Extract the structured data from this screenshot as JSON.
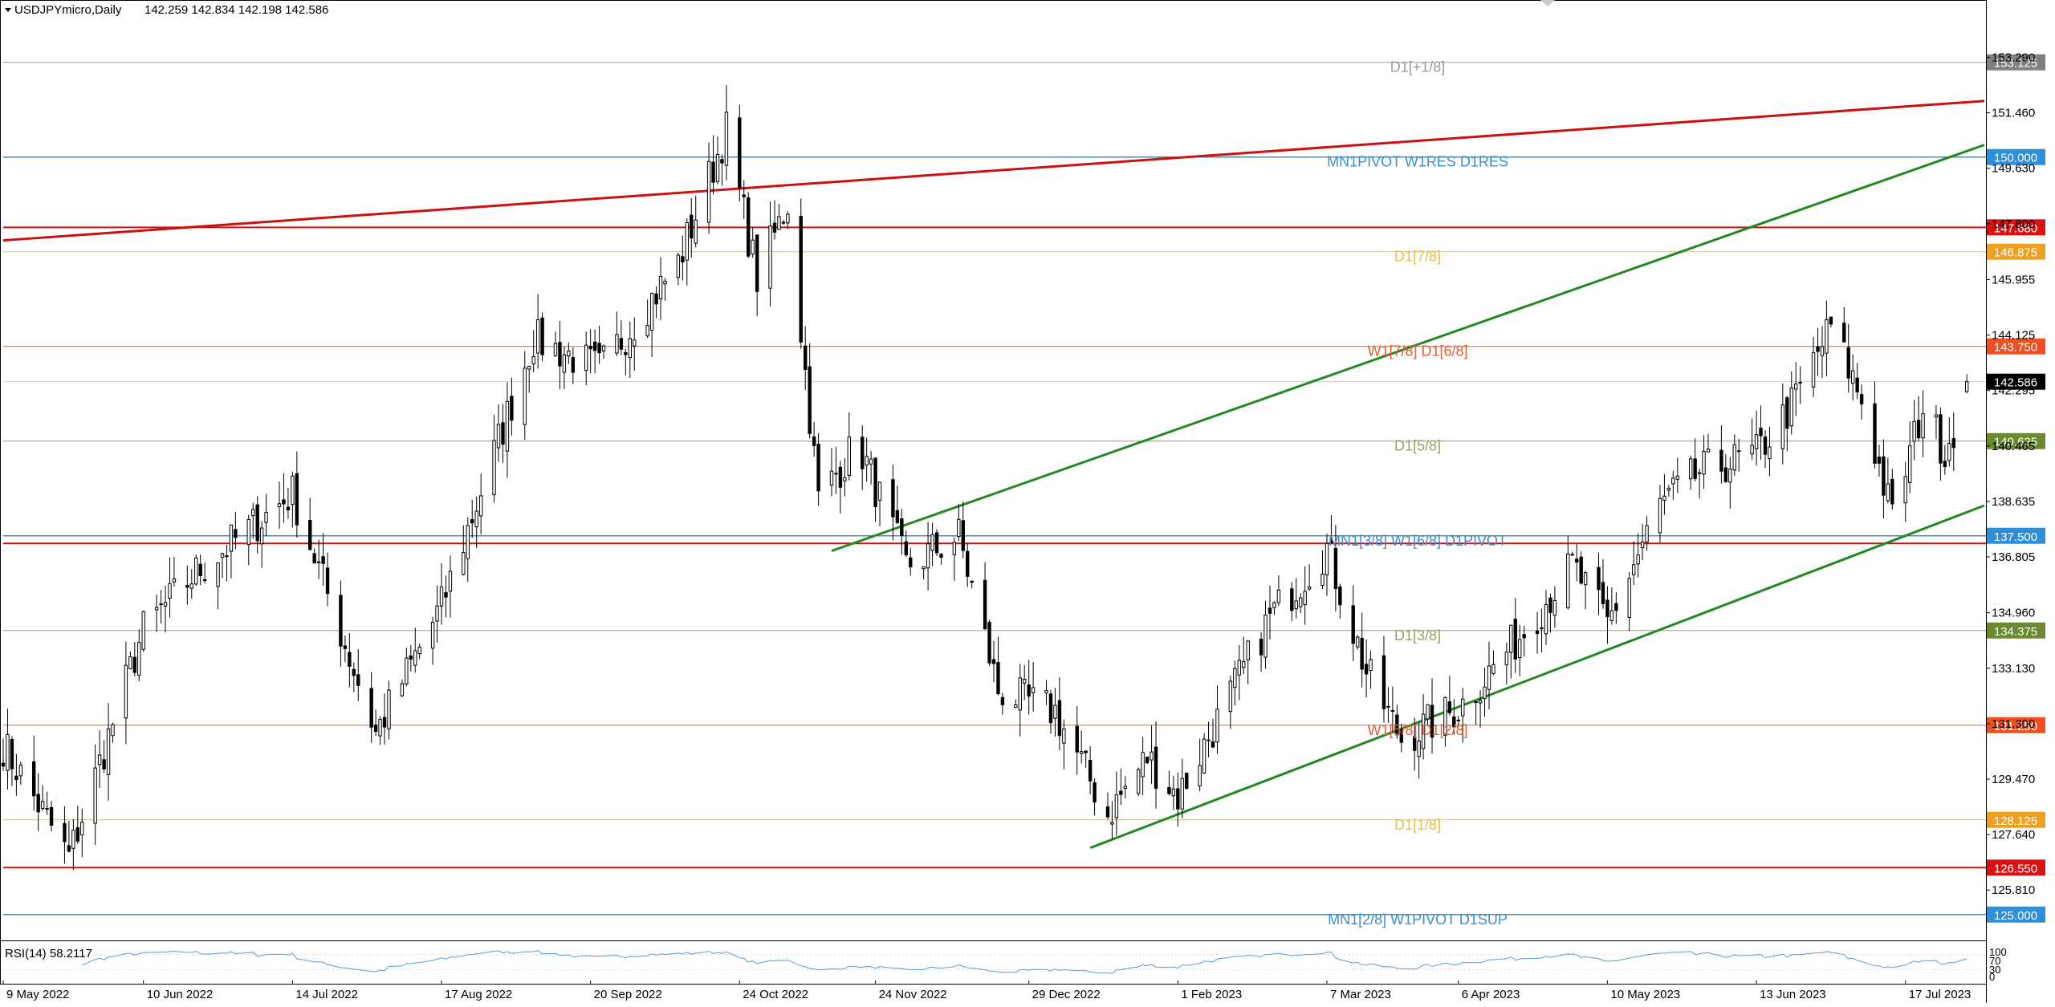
{
  "header": {
    "symbol_text": "USDJPYmicro,Daily",
    "ohlc_text": "142.259 142.834 142.198 142.586"
  },
  "indicator": {
    "label": "RSI(14) 58.2117"
  },
  "chart_data": {
    "type": "candlestick",
    "symbol": "USDJPYmicro",
    "timeframe": "Daily",
    "ohlc": {
      "open": 142.259,
      "high": 142.834,
      "low": 142.198,
      "close": 142.586
    },
    "y_range": [
      124.2,
      154.6
    ],
    "y_ticks": [
      "153.290",
      "151.460",
      "149.630",
      "147.800",
      "145.955",
      "144.125",
      "142.295",
      "140.465",
      "138.635",
      "136.805",
      "134.960",
      "133.130",
      "131.300",
      "129.470",
      "127.640",
      "125.810"
    ],
    "x_range": [
      "2022-05-09",
      "2023-08-04"
    ],
    "x_ticks": [
      {
        "date": "2022-05-09",
        "label": "9 May 2022"
      },
      {
        "date": "2022-06-10",
        "label": "10 Jun 2022"
      },
      {
        "date": "2022-07-14",
        "label": "14 Jul 2022"
      },
      {
        "date": "2022-08-17",
        "label": "17 Aug 2022"
      },
      {
        "date": "2022-09-20",
        "label": "20 Sep 2022"
      },
      {
        "date": "2022-10-24",
        "label": "24 Oct 2022"
      },
      {
        "date": "2022-11-24",
        "label": "24 Nov 2022"
      },
      {
        "date": "2022-12-29",
        "label": "29 Dec 2022"
      },
      {
        "date": "2023-02-01",
        "label": "1 Feb 2023"
      },
      {
        "date": "2023-03-07",
        "label": "7 Mar 2023"
      },
      {
        "date": "2023-04-06",
        "label": "6 Apr 2023"
      },
      {
        "date": "2023-05-10",
        "label": "10 May 2023"
      },
      {
        "date": "2023-06-13",
        "label": "13 Jun 2023"
      },
      {
        "date": "2023-07-17",
        "label": "17 Jul 2023"
      }
    ],
    "price_anchors": [
      {
        "date": "2022-05-09",
        "value": 130.6
      },
      {
        "date": "2022-05-24",
        "value": 126.9
      },
      {
        "date": "2022-06-10",
        "value": 134.4
      },
      {
        "date": "2022-06-22",
        "value": 136.3
      },
      {
        "date": "2022-07-14",
        "value": 138.9
      },
      {
        "date": "2022-08-02",
        "value": 131.0
      },
      {
        "date": "2022-08-17",
        "value": 135.2
      },
      {
        "date": "2022-09-07",
        "value": 144.0
      },
      {
        "date": "2022-09-22",
        "value": 143.0
      },
      {
        "date": "2022-10-10",
        "value": 146.5
      },
      {
        "date": "2022-10-21",
        "value": 150.9
      },
      {
        "date": "2022-10-28",
        "value": 146.0
      },
      {
        "date": "2022-11-04",
        "value": 148.5
      },
      {
        "date": "2022-11-11",
        "value": 138.7
      },
      {
        "date": "2022-11-20",
        "value": 140.6
      },
      {
        "date": "2022-12-01",
        "value": 136.5
      },
      {
        "date": "2022-12-13",
        "value": 137.5
      },
      {
        "date": "2022-12-22",
        "value": 132.4
      },
      {
        "date": "2023-01-04",
        "value": 131.7
      },
      {
        "date": "2023-01-16",
        "value": 128.3
      },
      {
        "date": "2023-01-25",
        "value": 130.2
      },
      {
        "date": "2023-02-01",
        "value": 128.9
      },
      {
        "date": "2023-02-10",
        "value": 131.4
      },
      {
        "date": "2023-02-22",
        "value": 134.8
      },
      {
        "date": "2023-03-07",
        "value": 137.1
      },
      {
        "date": "2023-03-16",
        "value": 133.0
      },
      {
        "date": "2023-03-24",
        "value": 130.8
      },
      {
        "date": "2023-04-06",
        "value": 131.8
      },
      {
        "date": "2023-04-20",
        "value": 134.2
      },
      {
        "date": "2023-05-02",
        "value": 136.5
      },
      {
        "date": "2023-05-10",
        "value": 134.6
      },
      {
        "date": "2023-05-22",
        "value": 138.5
      },
      {
        "date": "2023-05-31",
        "value": 139.6
      },
      {
        "date": "2023-06-13",
        "value": 140.2
      },
      {
        "date": "2023-06-21",
        "value": 141.8
      },
      {
        "date": "2023-06-30",
        "value": 144.4
      },
      {
        "date": "2023-07-07",
        "value": 142.0
      },
      {
        "date": "2023-07-14",
        "value": 138.1
      },
      {
        "date": "2023-07-21",
        "value": 141.8
      },
      {
        "date": "2023-07-26",
        "value": 140.3
      },
      {
        "date": "2023-07-31",
        "value": 142.259
      }
    ],
    "levels": [
      {
        "value": 153.125,
        "label": "D1[+1/8]",
        "value_label": "153.125",
        "color": "#9a9a9a",
        "tag_color": "#808080",
        "width": 1
      },
      {
        "value": 150.0,
        "label": "MN1PIVOT W1RES D1RES",
        "value_label": "150.000",
        "color": "#3a8fd0",
        "tag_color": "#2e8fd8",
        "width": 1.5
      },
      {
        "value": 147.68,
        "label": "",
        "value_label": "147.680",
        "color": "#cc1111",
        "tag_color": "#dd1111",
        "width": 2
      },
      {
        "value": 146.875,
        "label": "D1[7/8]",
        "value_label": "146.875",
        "color": "#e8c040",
        "tag_color": "#f0a020",
        "width": 1
      },
      {
        "value": 143.75,
        "label": "W1[7/8] D1[6/8]",
        "value_label": "143.750",
        "color": "#e06030",
        "tag_color": "#f05020",
        "width": 1
      },
      {
        "value": 140.625,
        "label": "D1[5/8]",
        "value_label": "140.625",
        "color": "#9aa060",
        "tag_color": "#6a8a30",
        "width": 1
      },
      {
        "value": 137.5,
        "label": "MN1[3/8] W1[6/8] D1PIVOT",
        "value_label": "137.500",
        "color": "#3a8fd0",
        "tag_color": "#2e8fd8",
        "width": 1.5
      },
      {
        "value": 137.25,
        "label": "",
        "value_label": "",
        "color": "#cc1111",
        "tag_color": "#dd1111",
        "width": 2
      },
      {
        "value": 134.375,
        "label": "D1[3/8]",
        "value_label": "134.375",
        "color": "#9aa060",
        "tag_color": "#6a8a30",
        "width": 1
      },
      {
        "value": 131.25,
        "label": "W1[5/8] D1[2/8]",
        "value_label": "131.250",
        "color": "#e06030",
        "tag_color": "#f05020",
        "width": 1
      },
      {
        "value": 128.125,
        "label": "D1[1/8]",
        "value_label": "128.125",
        "color": "#e8c040",
        "tag_color": "#f0a020",
        "width": 1
      },
      {
        "value": 126.55,
        "label": "",
        "value_label": "126.550",
        "color": "#cc1111",
        "tag_color": "#dd1111",
        "width": 2
      },
      {
        "value": 125.0,
        "label": "MN1[2/8] W1PIVOT D1SUP",
        "value_label": "125.000",
        "color": "#3a8fd0",
        "tag_color": "#2e8fd8",
        "width": 1.5
      }
    ],
    "trendlines": [
      {
        "name": "red-resistance",
        "color": "#cc1111",
        "from": {
          "date": "2022-05-09",
          "value": 147.25
        },
        "to": {
          "date": "2023-08-04",
          "value": 151.85
        }
      },
      {
        "name": "green-channel-upper",
        "color": "#228822",
        "from": {
          "date": "2022-11-14",
          "value": 137.0
        },
        "to": {
          "date": "2023-08-04",
          "value": 150.4
        }
      },
      {
        "name": "green-channel-lower",
        "color": "#228822",
        "from": {
          "date": "2023-01-12",
          "value": 127.2
        },
        "to": {
          "date": "2023-08-04",
          "value": 138.5
        }
      }
    ],
    "current_price": {
      "value": 142.586,
      "label": "142.586"
    },
    "rsi": {
      "value": 58.2117,
      "levels": [
        "100",
        "70",
        "30",
        "0"
      ]
    }
  }
}
